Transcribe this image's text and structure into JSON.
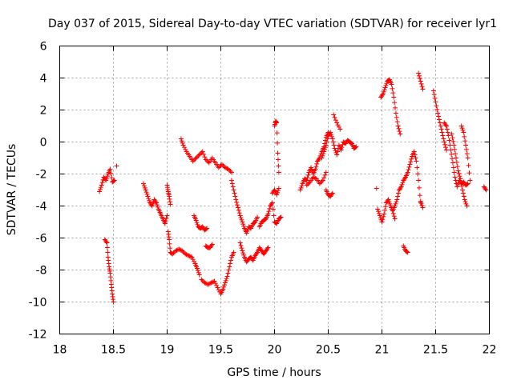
{
  "chart_data": {
    "type": "scatter",
    "title": "Day 037 of 2015, Sidereal Day-to-day VTEC variation (SDTVAR) for receiver lyr1",
    "xlabel": "GPS time / hours",
    "ylabel": "SDTVAR / TECUs",
    "xlim": [
      18,
      22
    ],
    "ylim": [
      -12,
      6
    ],
    "xticks": [
      "18",
      "18.5",
      "19",
      "19.5",
      "20",
      "20.5",
      "21",
      "21.5",
      "22"
    ],
    "yticks": [
      "6",
      "4",
      "2",
      "0",
      "-2",
      "-4",
      "-6",
      "-8",
      "-10",
      "-12"
    ],
    "grid": true,
    "marker": "+",
    "color": "#ff0000",
    "segments": [
      {
        "x": [
          18.37,
          18.39,
          18.41,
          18.43,
          18.45,
          18.47,
          18.49,
          18.51
        ],
        "y": [
          -3.1,
          -2.7,
          -2.2,
          -2.4,
          -2.0,
          -1.7,
          -2.5,
          -2.4
        ]
      },
      {
        "x": [
          18.42,
          18.44,
          18.45,
          18.46,
          18.47,
          18.48,
          18.49,
          18.5
        ],
        "y": [
          -6.1,
          -6.3,
          -7.2,
          -7.8,
          -8.2,
          -8.9,
          -9.5,
          -10.0
        ]
      },
      {
        "x": [
          18.53
        ],
        "y": [
          -1.5
        ]
      },
      {
        "x": [
          18.78,
          18.8,
          18.82,
          18.84,
          18.86,
          18.88,
          18.9,
          18.92,
          18.94,
          18.96,
          18.98,
          19.0
        ],
        "y": [
          -2.6,
          -3.0,
          -3.4,
          -3.8,
          -4.0,
          -3.6,
          -3.8,
          -4.2,
          -4.5,
          -4.8,
          -5.1,
          -4.6
        ]
      },
      {
        "x": [
          19.0,
          19.01,
          19.02,
          19.03
        ],
        "y": [
          -2.7,
          -3.1,
          -3.4,
          -3.9
        ]
      },
      {
        "x": [
          19.01,
          19.02,
          19.03,
          19.05,
          19.08,
          19.11,
          19.14,
          19.17,
          19.2,
          19.23,
          19.26,
          19.28,
          19.3
        ],
        "y": [
          -5.6,
          -6.1,
          -6.9,
          -7.0,
          -6.8,
          -6.7,
          -6.8,
          -7.0,
          -7.1,
          -7.2,
          -7.6,
          -7.9,
          -8.3
        ]
      },
      {
        "x": [
          19.13,
          19.15,
          19.18,
          19.21,
          19.24,
          19.27,
          19.3,
          19.33,
          19.36,
          19.39,
          19.42,
          19.45,
          19.48,
          19.51,
          19.54,
          19.57,
          19.6
        ],
        "y": [
          0.2,
          -0.2,
          -0.6,
          -0.9,
          -1.2,
          -1.0,
          -0.8,
          -0.6,
          -1.1,
          -1.3,
          -1.0,
          -1.3,
          -1.6,
          -1.4,
          -1.6,
          -1.7,
          -1.9
        ]
      },
      {
        "x": [
          19.25,
          19.27,
          19.29,
          19.31,
          19.33,
          19.35,
          19.37
        ],
        "y": [
          -4.6,
          -4.9,
          -5.3,
          -5.4,
          -5.3,
          -5.5,
          -5.4
        ]
      },
      {
        "x": [
          19.36,
          19.38,
          19.4,
          19.42
        ],
        "y": [
          -6.5,
          -6.6,
          -6.6,
          -6.4
        ]
      },
      {
        "x": [
          19.32,
          19.35,
          19.38,
          19.41,
          19.44,
          19.47,
          19.5,
          19.52,
          19.54,
          19.56,
          19.58,
          19.6,
          19.62
        ],
        "y": [
          -8.6,
          -8.8,
          -8.9,
          -8.8,
          -8.7,
          -9.1,
          -9.5,
          -9.2,
          -8.8,
          -8.4,
          -7.8,
          -7.2,
          -6.9
        ]
      },
      {
        "x": [
          19.6,
          19.62,
          19.64,
          19.66,
          19.68,
          19.7,
          19.72,
          19.74,
          19.76,
          19.78,
          19.8,
          19.82,
          19.84
        ],
        "y": [
          -2.4,
          -3.0,
          -3.6,
          -4.1,
          -4.6,
          -5.0,
          -5.4,
          -5.7,
          -5.3,
          -5.4,
          -5.1,
          -5.0,
          -4.7
        ]
      },
      {
        "x": [
          19.68,
          19.7,
          19.72,
          19.74,
          19.76,
          19.78,
          19.8,
          19.82,
          19.84,
          19.86,
          19.88,
          19.9,
          19.92,
          19.94
        ],
        "y": [
          -6.3,
          -6.8,
          -7.2,
          -7.5,
          -7.3,
          -7.2,
          -7.4,
          -7.1,
          -6.9,
          -6.6,
          -6.8,
          -7.0,
          -6.8,
          -6.6
        ]
      },
      {
        "x": [
          19.86,
          19.88,
          19.9,
          19.92,
          19.94,
          19.96,
          19.98,
          20.0,
          20.02,
          20.04,
          20.06
        ],
        "y": [
          -5.3,
          -5.0,
          -4.9,
          -4.8,
          -4.5,
          -4.0,
          -3.8,
          -5.0,
          -5.1,
          -4.8,
          -4.7
        ]
      },
      {
        "x": [
          19.98,
          20.0,
          20.02,
          20.04
        ],
        "y": [
          -3.2,
          -3.0,
          -3.3,
          -2.9
        ]
      },
      {
        "x": [
          20.0,
          20.01,
          20.02,
          20.03,
          20.04
        ],
        "y": [
          1.0,
          1.3,
          1.2,
          -0.7,
          -1.9
        ]
      },
      {
        "x": [
          20.24,
          20.26,
          20.28,
          20.3,
          20.32,
          20.34,
          20.36,
          20.38,
          20.4,
          20.42,
          20.44,
          20.46,
          20.48,
          20.5
        ],
        "y": [
          -3.0,
          -2.6,
          -2.3,
          -2.4,
          -1.9,
          -1.6,
          -2.0,
          -1.7,
          -1.2,
          -1.0,
          -0.6,
          -0.3,
          0.3,
          0.6
        ]
      },
      {
        "x": [
          20.3,
          20.33,
          20.36,
          20.39,
          20.42,
          20.45,
          20.48
        ],
        "y": [
          -2.7,
          -2.5,
          -2.2,
          -2.3,
          -2.6,
          -2.4,
          -1.9
        ]
      },
      {
        "x": [
          20.44,
          20.46,
          20.48,
          20.5,
          20.52,
          20.54,
          20.56,
          20.58,
          20.6,
          20.62,
          20.64,
          20.66,
          20.68,
          20.7,
          20.72,
          20.74,
          20.76
        ],
        "y": [
          -1.0,
          -0.6,
          -0.2,
          0.4,
          0.6,
          0.2,
          -0.4,
          -0.8,
          -0.2,
          -0.5,
          0.0,
          -0.1,
          0.1,
          0.0,
          -0.1,
          -0.4,
          -0.3
        ]
      },
      {
        "x": [
          20.48,
          20.5,
          20.52,
          20.54
        ],
        "y": [
          -3.0,
          -3.3,
          -3.4,
          -3.2
        ]
      },
      {
        "x": [
          20.55,
          20.58,
          20.61
        ],
        "y": [
          1.7,
          1.2,
          0.8
        ]
      },
      {
        "x": [
          20.96,
          20.98,
          21.0,
          21.02,
          21.04,
          21.06,
          21.08,
          21.1,
          21.12
        ],
        "y": [
          -4.2,
          -4.6,
          -5.0,
          -4.5,
          -3.8,
          -3.6,
          -4.0,
          -4.3,
          -4.8
        ]
      },
      {
        "x": [
          20.95
        ],
        "y": [
          -2.9
        ]
      },
      {
        "x": [
          20.99,
          21.01,
          21.03,
          21.05,
          21.07,
          21.09,
          21.11,
          21.13,
          21.15,
          21.17
        ],
        "y": [
          2.8,
          3.0,
          3.4,
          3.8,
          3.9,
          3.6,
          2.8,
          1.8,
          1.0,
          0.5
        ]
      },
      {
        "x": [
          21.1,
          21.12,
          21.14,
          21.16,
          21.18,
          21.2,
          21.22,
          21.24,
          21.26,
          21.28,
          21.3,
          21.32,
          21.34,
          21.36
        ],
        "y": [
          -4.3,
          -4.0,
          -3.6,
          -3.0,
          -2.8,
          -2.4,
          -2.2,
          -1.9,
          -1.4,
          -0.9,
          -0.6,
          -1.2,
          -2.4,
          -3.8
        ]
      },
      {
        "x": [
          21.2,
          21.22,
          21.24
        ],
        "y": [
          -6.5,
          -6.8,
          -6.9
        ]
      },
      {
        "x": [
          21.34,
          21.36,
          21.38
        ],
        "y": [
          4.3,
          3.8,
          3.3
        ]
      },
      {
        "x": [
          21.36,
          21.38
        ],
        "y": [
          -3.7,
          -4.1
        ]
      },
      {
        "x": [
          21.48,
          21.5,
          21.52,
          21.54,
          21.56,
          21.58,
          21.6
        ],
        "y": [
          3.2,
          2.5,
          1.8,
          1.2,
          0.6,
          0.0,
          -0.5
        ]
      },
      {
        "x": [
          21.58,
          21.6,
          21.62,
          21.64,
          21.66,
          21.68,
          21.7,
          21.72,
          21.74,
          21.76,
          21.78,
          21.8
        ],
        "y": [
          1.2,
          1.0,
          0.4,
          -0.5,
          -1.3,
          -2.2,
          -2.8,
          -2.4,
          -2.6,
          -2.5,
          -2.7,
          -2.6
        ]
      },
      {
        "x": [
          21.65,
          21.67,
          21.69,
          21.71,
          21.73,
          21.75,
          21.77,
          21.79
        ],
        "y": [
          0.5,
          -0.2,
          -1.0,
          -1.8,
          -2.3,
          -3.0,
          -3.6,
          -4.0
        ]
      },
      {
        "x": [
          21.74,
          21.76,
          21.78,
          21.8,
          21.82
        ],
        "y": [
          1.0,
          0.6,
          -0.2,
          -1.0,
          -2.4
        ]
      },
      {
        "x": [
          21.95,
          21.97
        ],
        "y": [
          -2.8,
          -3.0
        ]
      }
    ]
  }
}
